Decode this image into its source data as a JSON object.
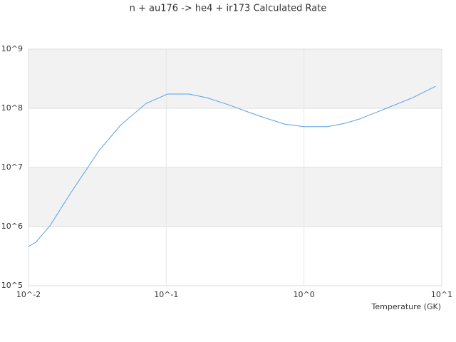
{
  "chart_data": {
    "type": "line",
    "title": "n + au176 -> he4 + ir173 Calculated Rate",
    "x_label": "Temperature (GK)",
    "x": [
      0.01,
      0.01127,
      0.0143,
      0.0204,
      0.0329,
      0.0471,
      0.0715,
      0.102,
      0.146,
      0.197,
      0.282,
      0.402,
      0.51,
      0.725,
      1,
      1.48,
      2.0,
      2.53,
      3.84,
      6.18,
      9.05
    ],
    "series": [
      {
        "color": "#5aa0e6",
        "values": [
          460000,
          540000,
          1030000,
          3800000,
          20000000,
          53000000,
          121000000,
          174000000,
          174000000,
          151000000,
          115000000,
          85000000,
          70000000,
          54000000,
          49000000,
          49000000,
          56000000,
          66000000,
          97000000,
          152000000,
          236000000
        ]
      }
    ],
    "xscale": "log",
    "yscale": "log",
    "xlim": [
      0.01,
      10
    ],
    "ylim": [
      100000,
      1000000000
    ],
    "xticks": [
      {
        "value": 0.01,
        "label": "10^-2"
      },
      {
        "value": 0.1,
        "label": "10^-1"
      },
      {
        "value": 1,
        "label": "10^0"
      },
      {
        "value": 10,
        "label": "10^1"
      }
    ],
    "yticks": [
      {
        "value": 100000,
        "label": "10^5"
      },
      {
        "value": 1000000,
        "label": "10^6"
      },
      {
        "value": 10000000,
        "label": "10^7"
      },
      {
        "value": 100000000,
        "label": "10^8"
      },
      {
        "value": 1000000000,
        "label": "10^9"
      }
    ],
    "grid": true
  }
}
